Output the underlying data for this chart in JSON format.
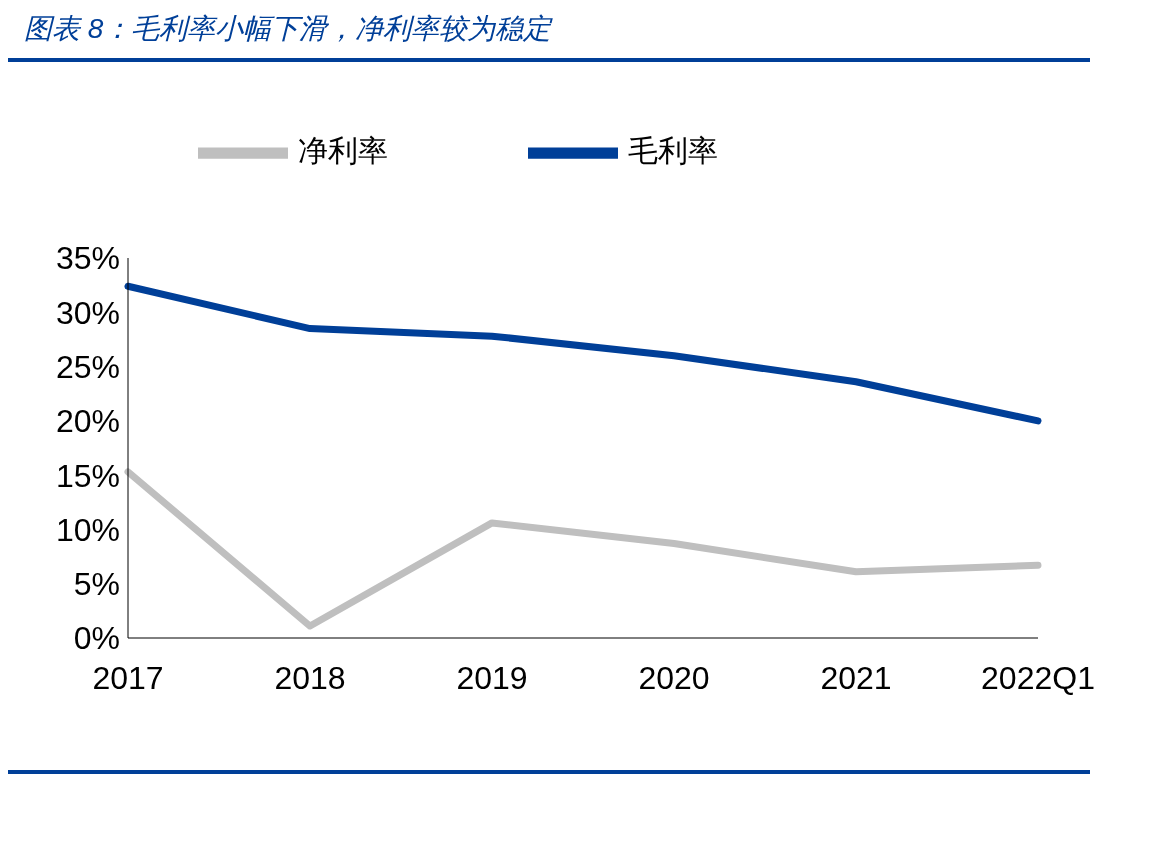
{
  "chart_data": {
    "type": "line",
    "title": "图表 8：毛利率小幅下滑，净利率较为稳定",
    "categories": [
      "2017",
      "2018",
      "2019",
      "2020",
      "2021",
      "2022Q1"
    ],
    "series": [
      {
        "name": "毛利率",
        "color": "#003f98",
        "values": [
          32.4,
          28.5,
          27.8,
          26.0,
          23.6,
          20.0
        ]
      },
      {
        "name": "净利率",
        "color": "#bfbfbf",
        "values": [
          15.3,
          1.1,
          10.6,
          8.7,
          6.1,
          6.7
        ]
      }
    ],
    "ylim": [
      0,
      35
    ],
    "yticks": [
      {
        "value": 0,
        "label": "0%"
      },
      {
        "value": 5,
        "label": "5%"
      },
      {
        "value": 10,
        "label": "10%"
      },
      {
        "value": 15,
        "label": "15%"
      },
      {
        "value": 20,
        "label": "20%"
      },
      {
        "value": 25,
        "label": "25%"
      },
      {
        "value": 30,
        "label": "30%"
      },
      {
        "value": 35,
        "label": "35%"
      }
    ],
    "grid": false,
    "legend": "top",
    "marker": "none",
    "line_style": "solid"
  }
}
